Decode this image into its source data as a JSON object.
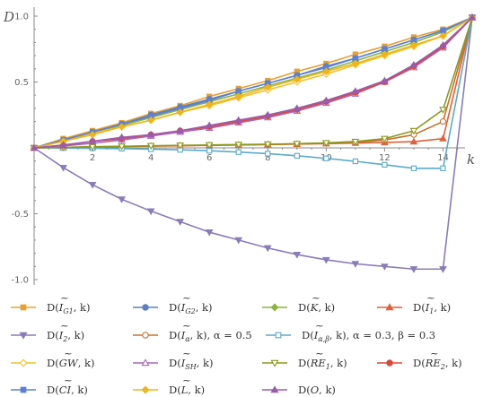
{
  "chart_data": {
    "type": "line",
    "xlabel": "k",
    "ylabel": "D",
    "xlim": [
      0,
      15
    ],
    "ylim": [
      -1.0,
      1.0
    ],
    "x_ticks": [
      2,
      4,
      6,
      8,
      10,
      12,
      14
    ],
    "y_ticks": [
      -1.0,
      -0.5,
      0,
      0.5,
      1.0
    ],
    "y_tick_labels": [
      "-1.0",
      "-0.5",
      "",
      "0.5",
      "1.0"
    ],
    "x": [
      0,
      1,
      2,
      3,
      4,
      5,
      6,
      7,
      8,
      9,
      10,
      11,
      12,
      13,
      14,
      15
    ],
    "legend_placement": "bottom",
    "series": [
      {
        "name": "D(Ĩ_G1, k)",
        "color": "#E8A030",
        "marker": "square",
        "values": [
          0,
          0.07,
          0.13,
          0.19,
          0.26,
          0.32,
          0.39,
          0.45,
          0.51,
          0.58,
          0.64,
          0.71,
          0.77,
          0.84,
          0.9,
          0.99
        ]
      },
      {
        "name": "D(Ĩ_G2, k)",
        "color": "#5B80C0",
        "marker": "circle",
        "values": [
          0,
          0.06,
          0.12,
          0.18,
          0.25,
          0.31,
          0.37,
          0.43,
          0.49,
          0.55,
          0.62,
          0.68,
          0.75,
          0.82,
          0.89,
          0.99
        ]
      },
      {
        "name": "D(K̃, k)",
        "color": "#8CB43C",
        "marker": "diamond",
        "values": [
          0,
          0.06,
          0.12,
          0.17,
          0.23,
          0.29,
          0.35,
          0.41,
          0.47,
          0.53,
          0.59,
          0.66,
          0.73,
          0.8,
          0.88,
          0.99
        ]
      },
      {
        "name": "D(Ĩ_1, k)",
        "color": "#E0603A",
        "marker": "triangle-up",
        "values": [
          0,
          0.003,
          0.006,
          0.01,
          0.013,
          0.016,
          0.019,
          0.022,
          0.025,
          0.028,
          0.032,
          0.036,
          0.041,
          0.047,
          0.07,
          0.99
        ]
      },
      {
        "name": "D(Ĩ_2, k)",
        "color": "#8A7CB8",
        "marker": "triangle-down",
        "values": [
          0,
          -0.15,
          -0.28,
          -0.39,
          -0.48,
          -0.56,
          -0.64,
          -0.7,
          -0.76,
          -0.81,
          -0.85,
          -0.88,
          -0.9,
          -0.92,
          -0.92,
          0.99
        ]
      },
      {
        "name": "D(Ĩ_α, k), α = 0.5",
        "color": "#C8722E",
        "marker": "circle-open",
        "values": [
          0,
          0.004,
          0.008,
          0.011,
          0.014,
          0.017,
          0.02,
          0.023,
          0.026,
          0.03,
          0.035,
          0.042,
          0.06,
          0.1,
          0.2,
          0.99
        ]
      },
      {
        "name": "D(Ĩ_α,β, k), α = 0.3, β = 0.3",
        "color": "#5AAACC",
        "marker": "square-open",
        "values": [
          0,
          -0.001,
          -0.003,
          -0.006,
          -0.01,
          -0.015,
          -0.022,
          -0.032,
          -0.044,
          -0.06,
          -0.08,
          -0.102,
          -0.128,
          -0.155,
          -0.155,
          0.99
        ]
      },
      {
        "name": "D(GW̃, k)",
        "color": "#F2C230",
        "marker": "diamond-open",
        "values": [
          0,
          0.05,
          0.11,
          0.16,
          0.21,
          0.27,
          0.32,
          0.38,
          0.44,
          0.5,
          0.56,
          0.63,
          0.7,
          0.77,
          0.85,
          0.99
        ]
      },
      {
        "name": "D(Ĩ_SH, k)",
        "color": "#A868B8",
        "marker": "triangle-up-open",
        "values": [
          0,
          0.015,
          0.035,
          0.06,
          0.09,
          0.12,
          0.15,
          0.19,
          0.23,
          0.28,
          0.34,
          0.41,
          0.5,
          0.61,
          0.76,
          0.99
        ]
      },
      {
        "name": "D(RẼ_1, k)",
        "color": "#8A9A1A",
        "marker": "triangle-down-open",
        "values": [
          0,
          0.004,
          0.008,
          0.012,
          0.016,
          0.019,
          0.022,
          0.025,
          0.028,
          0.032,
          0.038,
          0.048,
          0.07,
          0.13,
          0.29,
          0.99
        ]
      },
      {
        "name": "D(RẼ_2, k)",
        "color": "#D84A38",
        "marker": "circle",
        "values": [
          0,
          0.02,
          0.05,
          0.07,
          0.1,
          0.13,
          0.16,
          0.2,
          0.24,
          0.29,
          0.35,
          0.42,
          0.5,
          0.62,
          0.77,
          0.99
        ]
      },
      {
        "name": "D(CĨ, k)",
        "color": "#5B80D8",
        "marker": "square",
        "values": [
          0,
          0.06,
          0.12,
          0.18,
          0.24,
          0.3,
          0.36,
          0.43,
          0.49,
          0.55,
          0.61,
          0.68,
          0.75,
          0.82,
          0.89,
          0.99
        ]
      },
      {
        "name": "D(L̃, k)",
        "color": "#F0B418",
        "marker": "diamond",
        "values": [
          0,
          0.05,
          0.1,
          0.16,
          0.21,
          0.27,
          0.33,
          0.39,
          0.46,
          0.52,
          0.58,
          0.64,
          0.71,
          0.78,
          0.85,
          0.99
        ]
      },
      {
        "name": "D(O, k)",
        "color": "#9A5AB0",
        "marker": "triangle-up",
        "values": [
          0,
          0.022,
          0.05,
          0.08,
          0.1,
          0.13,
          0.17,
          0.21,
          0.25,
          0.3,
          0.36,
          0.43,
          0.51,
          0.63,
          0.78,
          0.99
        ]
      }
    ]
  },
  "legend_labels": [
    {
      "prefix": "D(",
      "base": "I",
      "sub": "G1",
      "accent": "~",
      "suffix": ", k)"
    },
    {
      "prefix": "D(",
      "base": "I",
      "sub": "G2",
      "accent": "~",
      "suffix": ", k)"
    },
    {
      "prefix": "D(",
      "base": "K",
      "sub": "",
      "accent": "~",
      "suffix": ", k)"
    },
    {
      "prefix": "D(",
      "base": "I",
      "sub": "1",
      "accent": "~",
      "suffix": ", k)"
    },
    {
      "prefix": "D(",
      "base": "I",
      "sub": "2",
      "accent": "~",
      "suffix": ", k)"
    },
    {
      "prefix": "D(",
      "base": "I",
      "sub": "α",
      "accent": "~",
      "suffix": ", k), α = 0.5"
    },
    {
      "prefix": "D(",
      "base": "I",
      "sub": "α,β",
      "accent": "~",
      "suffix": ", k), α = 0.3, β = 0.3"
    },
    {
      "prefix": "D(",
      "base": "GW",
      "sub": "",
      "accent": "~",
      "suffix": ", k)"
    },
    {
      "prefix": "D(",
      "base": "I",
      "sub": "SH",
      "accent": "~",
      "suffix": ", k)"
    },
    {
      "prefix": "D(",
      "base": "RE",
      "sub": "1",
      "accent": "~",
      "suffix": ", k)"
    },
    {
      "prefix": "D(",
      "base": "RE",
      "sub": "2",
      "accent": "~",
      "suffix": ", k)"
    },
    {
      "prefix": "D(",
      "base": "CI",
      "sub": "",
      "accent": "~",
      "suffix": ", k)"
    },
    {
      "prefix": "D(",
      "base": "L",
      "sub": "",
      "accent": "~",
      "suffix": ", k)"
    },
    {
      "prefix": "D(",
      "base": "O",
      "sub": "",
      "accent": "",
      "suffix": ", k)"
    }
  ]
}
